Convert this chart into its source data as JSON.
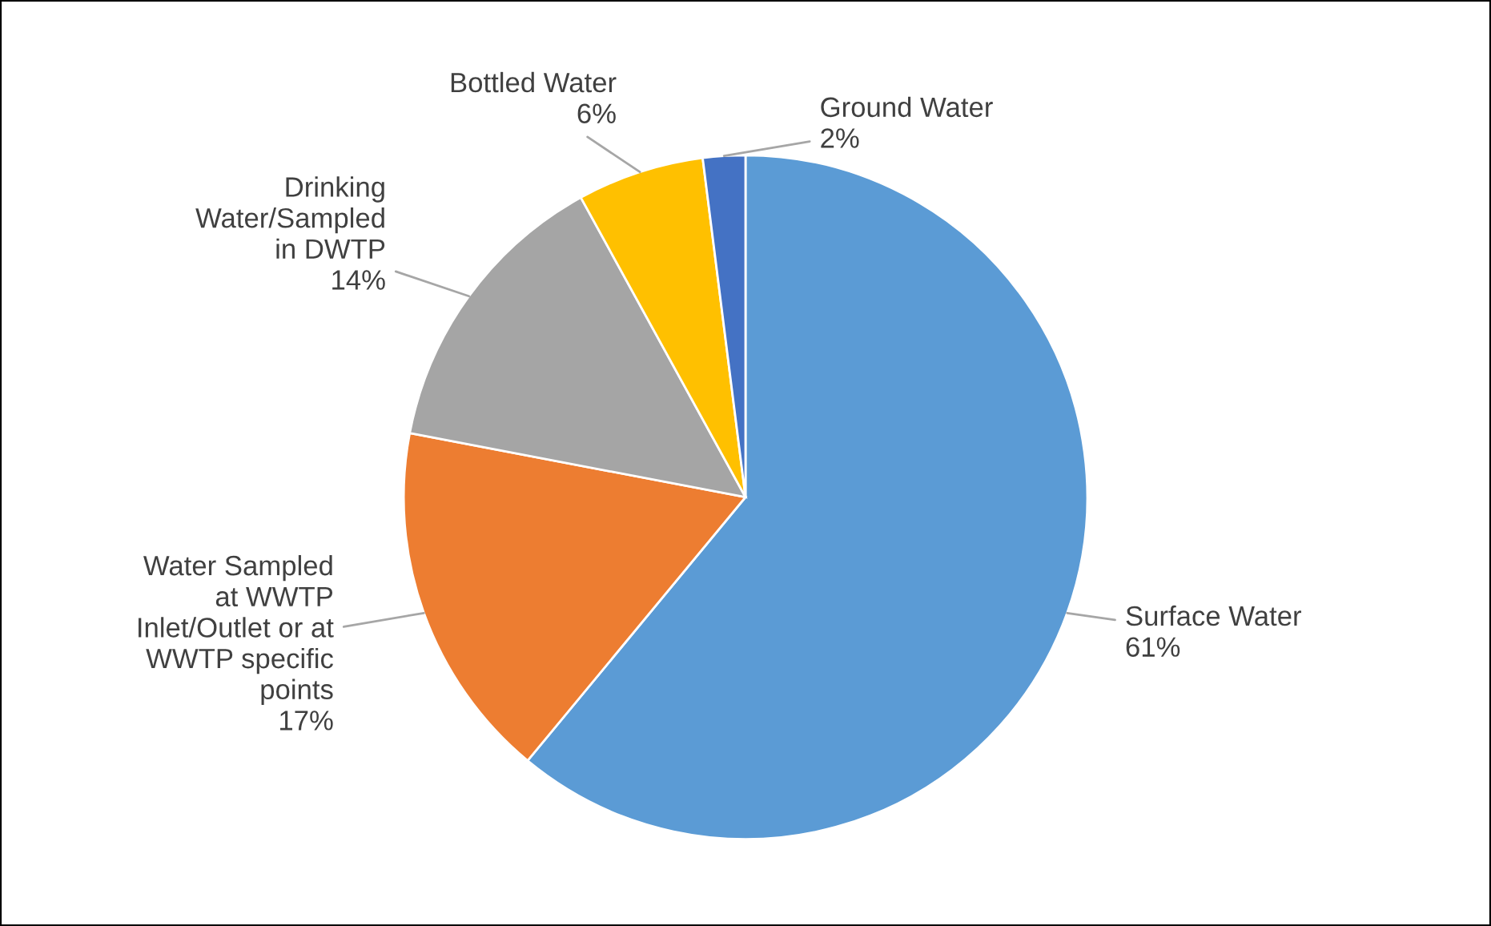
{
  "chart_data": {
    "type": "pie",
    "categories": [
      "Surface Water",
      "Water Sampled\nat WWTP\nInlet/Outlet or at\nWWTP specific\npoints",
      "Drinking\nWater/Sampled\nin DWTP",
      "Bottled Water",
      "Ground Water"
    ],
    "values": [
      61,
      17,
      14,
      6,
      2
    ],
    "value_labels": [
      "61%",
      "17%",
      "14%",
      "6%",
      "2%"
    ],
    "colors": [
      "#5b9bd5",
      "#ed7d31",
      "#a5a5a5",
      "#ffc000",
      "#4472c4"
    ],
    "legend": false
  }
}
